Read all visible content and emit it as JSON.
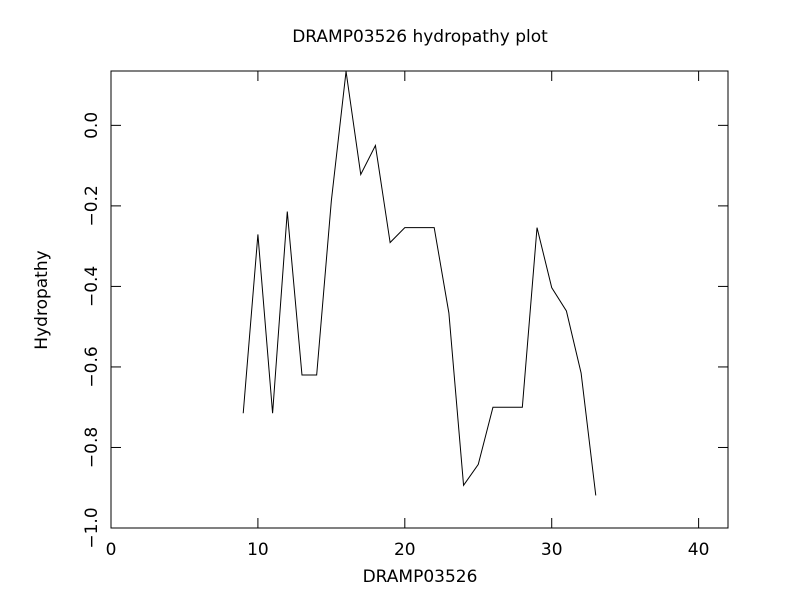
{
  "chart_data": {
    "type": "line",
    "title": "DRAMP03526 hydropathy plot",
    "x_label": "DRAMP03526",
    "y_label": "Hydropathy",
    "x": [
      9,
      10,
      11,
      12,
      13,
      14,
      15,
      16,
      17,
      18,
      19,
      20,
      21,
      22,
      23,
      24,
      25,
      26,
      27,
      28,
      29,
      30,
      31,
      32,
      33
    ],
    "values": [
      -0.715,
      -0.271,
      -0.715,
      -0.214,
      -0.62,
      -0.62,
      -0.187,
      0.134,
      -0.122,
      -0.05,
      -0.291,
      -0.254,
      -0.254,
      -0.254,
      -0.466,
      -0.894,
      -0.842,
      -0.7,
      -0.7,
      -0.7,
      -0.254,
      -0.403,
      -0.461,
      -0.615,
      -0.919
    ],
    "color": "#000000",
    "xlim": [
      0,
      42
    ],
    "xticks": [
      0,
      10,
      20,
      30,
      40
    ],
    "ylim": [
      -1.0,
      0.135
    ],
    "yticks": [
      {
        "value": 0,
        "label": "0.0"
      },
      {
        "value": -0.2,
        "label": "−0.2"
      },
      {
        "value": -0.4,
        "label": "−0.4"
      },
      {
        "value": -0.6,
        "label": "−0.6"
      },
      {
        "value": -0.8,
        "label": "−0.8"
      },
      {
        "value": -1.0,
        "label": "−1.0"
      }
    ],
    "grid": false
  }
}
